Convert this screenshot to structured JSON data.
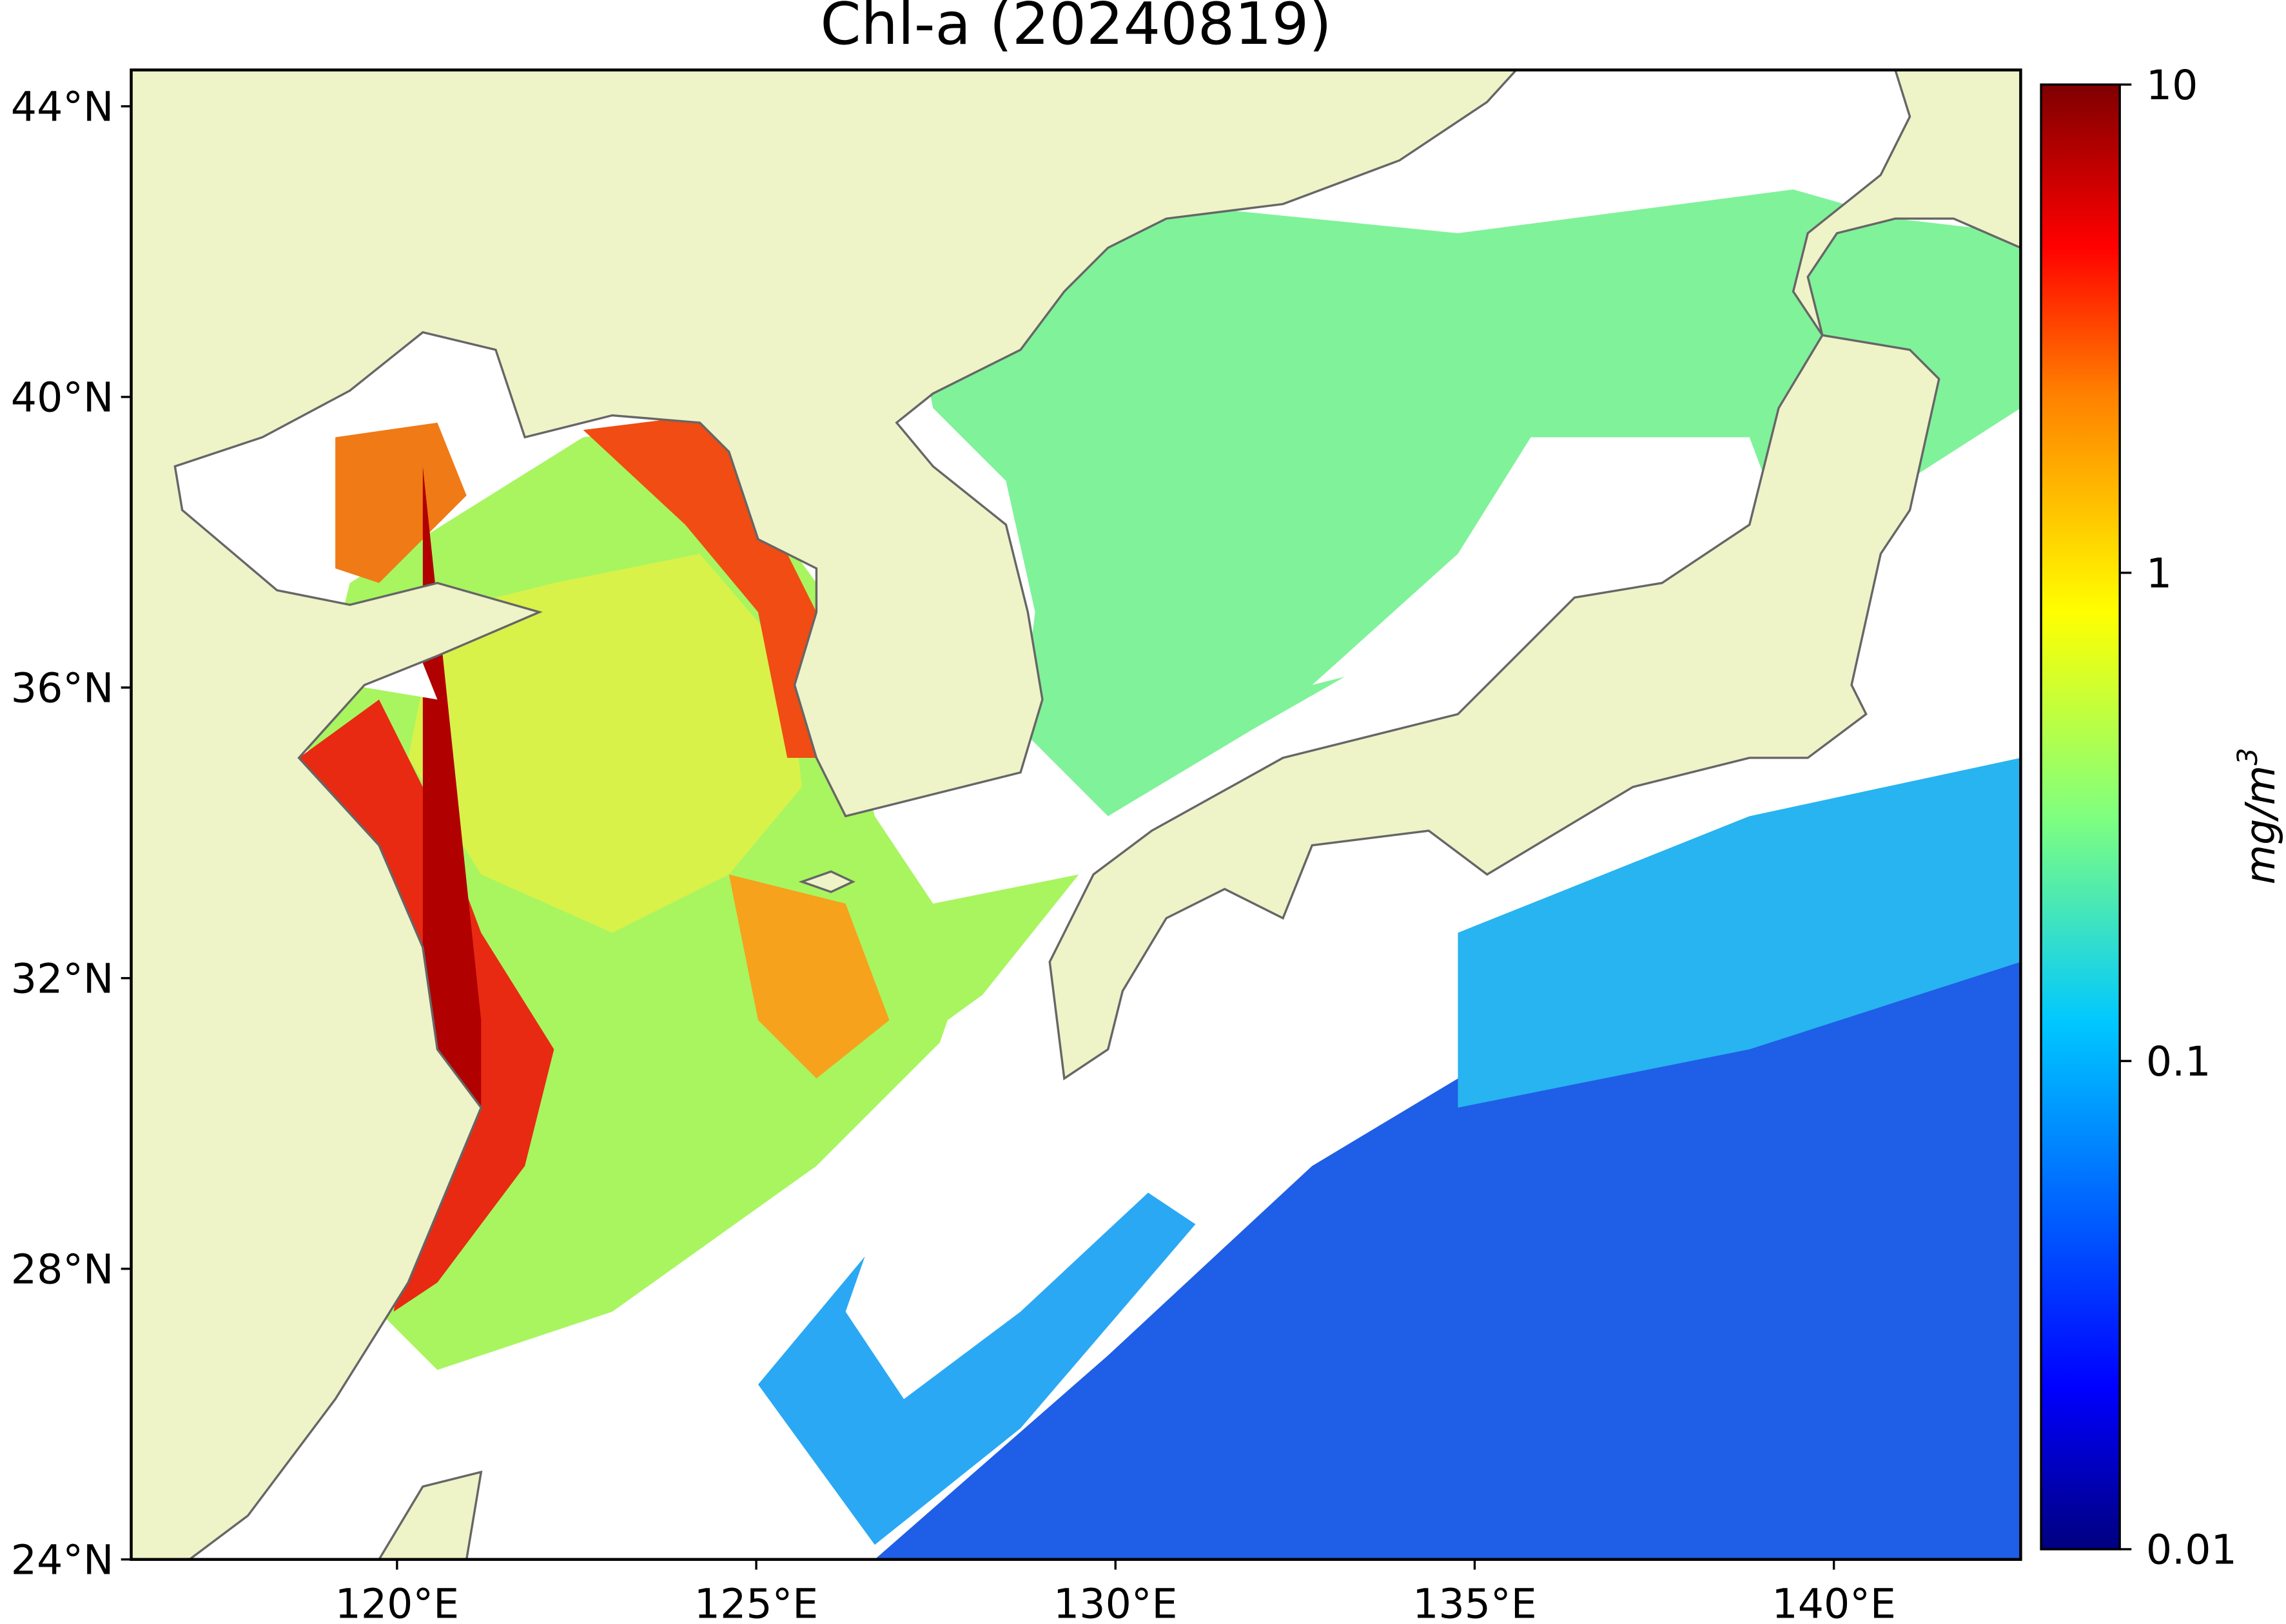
{
  "title": "Chl-a (20240819)",
  "map": {
    "lonlim": [
      116.3,
      142.6
    ],
    "latlim": [
      24,
      44.5
    ],
    "lon_ticks": [
      {
        "value": 120,
        "label": "120°E"
      },
      {
        "value": 125,
        "label": "125°E"
      },
      {
        "value": 130,
        "label": "130°E"
      },
      {
        "value": 135,
        "label": "135°E"
      },
      {
        "value": 140,
        "label": "140°E"
      }
    ],
    "lat_ticks": [
      {
        "value": 24,
        "label": "24°N"
      },
      {
        "value": 28,
        "label": "28°N"
      },
      {
        "value": 32,
        "label": "32°N"
      },
      {
        "value": 36,
        "label": "36°N"
      },
      {
        "value": 40,
        "label": "40°N"
      },
      {
        "value": 44,
        "label": "44°N"
      }
    ]
  },
  "colorbar": {
    "label": "mg/m",
    "label_sup": "3",
    "scale": "log",
    "lim": [
      0.01,
      10
    ],
    "ticks": [
      0.01,
      0.1,
      1,
      10
    ]
  }
}
